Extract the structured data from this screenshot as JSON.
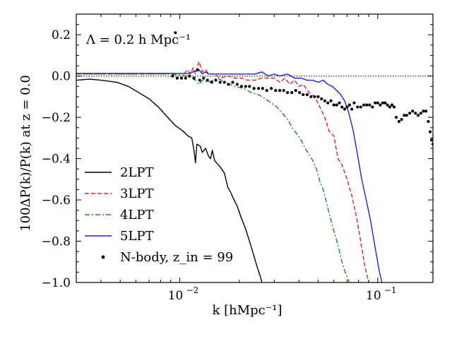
{
  "chart_data": {
    "type": "line",
    "annotation": "Λ = 0.2 h Mpc⁻¹",
    "xlabel": "k [hMpc⁻¹]",
    "ylabel": "100ΔP(k)/P(k) at z = 0.0",
    "xscale": "log",
    "xlim": [
      0.003,
      0.19
    ],
    "ylim": [
      -1.0,
      0.3
    ],
    "x_major_ticks": [
      {
        "value": 0.01,
        "base": "10",
        "exp": "−2"
      },
      {
        "value": 0.1,
        "base": "10",
        "exp": "−1"
      }
    ],
    "y_ticks": [
      {
        "value": 0.2,
        "label": "0.2"
      },
      {
        "value": 0.0,
        "label": "0.0"
      },
      {
        "value": -0.2,
        "label": "−0.2"
      },
      {
        "value": -0.4,
        "label": "−0.4"
      },
      {
        "value": -0.6,
        "label": "−0.6"
      },
      {
        "value": -0.8,
        "label": "−0.8"
      },
      {
        "value": -1.0,
        "label": "−1.0"
      }
    ],
    "reference_line": {
      "y": 0.0,
      "style": "dotted"
    },
    "legend_position": "lower-left",
    "series": [
      {
        "name": "2LPT",
        "color": "#000000",
        "dash": "solid",
        "points": [
          [
            0.003,
            -0.02
          ],
          [
            0.0035,
            -0.015
          ],
          [
            0.004,
            -0.02
          ],
          [
            0.0048,
            -0.03
          ],
          [
            0.0055,
            -0.05
          ],
          [
            0.0062,
            -0.08
          ],
          [
            0.007,
            -0.11
          ],
          [
            0.0078,
            -0.15
          ],
          [
            0.0085,
            -0.19
          ],
          [
            0.0095,
            -0.24
          ],
          [
            0.0105,
            -0.27
          ],
          [
            0.011,
            -0.29
          ],
          [
            0.0115,
            -0.3
          ],
          [
            0.0118,
            -0.36
          ],
          [
            0.012,
            -0.42
          ],
          [
            0.0122,
            -0.33
          ],
          [
            0.0127,
            -0.34
          ],
          [
            0.013,
            -0.37
          ],
          [
            0.0135,
            -0.35
          ],
          [
            0.014,
            -0.39
          ],
          [
            0.0143,
            -0.4
          ],
          [
            0.0146,
            -0.36
          ],
          [
            0.015,
            -0.41
          ],
          [
            0.016,
            -0.44
          ],
          [
            0.0168,
            -0.47
          ],
          [
            0.0175,
            -0.54
          ],
          [
            0.018,
            -0.56
          ],
          [
            0.0188,
            -0.6
          ],
          [
            0.0195,
            -0.63
          ],
          [
            0.0205,
            -0.69
          ],
          [
            0.0215,
            -0.74
          ],
          [
            0.0225,
            -0.8
          ],
          [
            0.0235,
            -0.86
          ],
          [
            0.0245,
            -0.92
          ],
          [
            0.0255,
            -0.97
          ],
          [
            0.026,
            -1.0
          ]
        ]
      },
      {
        "name": "3LPT",
        "color": "#e02020",
        "dash": "dashed",
        "points": [
          [
            0.003,
            0.01
          ],
          [
            0.005,
            0.01
          ],
          [
            0.007,
            0.01
          ],
          [
            0.009,
            0.012
          ],
          [
            0.0105,
            0.012
          ],
          [
            0.011,
            0.03
          ],
          [
            0.0113,
            0.01
          ],
          [
            0.0117,
            0.04
          ],
          [
            0.012,
            0.01
          ],
          [
            0.0125,
            0.07
          ],
          [
            0.013,
            0.02
          ],
          [
            0.0135,
            0.03
          ],
          [
            0.014,
            0.01
          ],
          [
            0.015,
            0.01
          ],
          [
            0.016,
            -0.01
          ],
          [
            0.0175,
            0.0
          ],
          [
            0.019,
            -0.01
          ],
          [
            0.0205,
            -0.01
          ],
          [
            0.022,
            -0.02
          ],
          [
            0.024,
            -0.02
          ],
          [
            0.026,
            -0.01
          ],
          [
            0.028,
            -0.01
          ],
          [
            0.03,
            -0.01
          ],
          [
            0.032,
            -0.03
          ],
          [
            0.034,
            -0.01
          ],
          [
            0.036,
            -0.04
          ],
          [
            0.038,
            -0.02
          ],
          [
            0.04,
            -0.05
          ],
          [
            0.042,
            -0.04
          ],
          [
            0.045,
            -0.08
          ],
          [
            0.048,
            -0.1
          ],
          [
            0.051,
            -0.15
          ],
          [
            0.054,
            -0.2
          ],
          [
            0.057,
            -0.27
          ],
          [
            0.06,
            -0.29
          ],
          [
            0.063,
            -0.4
          ],
          [
            0.066,
            -0.43
          ],
          [
            0.07,
            -0.5
          ],
          [
            0.074,
            -0.58
          ],
          [
            0.078,
            -0.68
          ],
          [
            0.082,
            -0.8
          ],
          [
            0.086,
            -0.92
          ],
          [
            0.09,
            -1.0
          ]
        ]
      },
      {
        "name": "4LPT",
        "color": "#1a8a1a",
        "dash": "dashdot",
        "points": [
          [
            0.003,
            0.01
          ],
          [
            0.006,
            0.01
          ],
          [
            0.009,
            0.01
          ],
          [
            0.011,
            0.0
          ],
          [
            0.012,
            -0.02
          ],
          [
            0.0125,
            -0.04
          ],
          [
            0.013,
            -0.02
          ],
          [
            0.014,
            -0.03
          ],
          [
            0.0155,
            -0.01
          ],
          [
            0.017,
            -0.03
          ],
          [
            0.019,
            -0.05
          ],
          [
            0.021,
            -0.06
          ],
          [
            0.023,
            -0.08
          ],
          [
            0.025,
            -0.09
          ],
          [
            0.027,
            -0.11
          ],
          [
            0.029,
            -0.13
          ],
          [
            0.031,
            -0.15
          ],
          [
            0.033,
            -0.18
          ],
          [
            0.035,
            -0.21
          ],
          [
            0.037,
            -0.25
          ],
          [
            0.039,
            -0.28
          ],
          [
            0.041,
            -0.31
          ],
          [
            0.043,
            -0.35
          ],
          [
            0.045,
            -0.38
          ],
          [
            0.047,
            -0.41
          ],
          [
            0.049,
            -0.45
          ],
          [
            0.051,
            -0.51
          ],
          [
            0.053,
            -0.55
          ],
          [
            0.055,
            -0.61
          ],
          [
            0.057,
            -0.67
          ],
          [
            0.06,
            -0.75
          ],
          [
            0.063,
            -0.82
          ],
          [
            0.066,
            -0.9
          ],
          [
            0.069,
            -0.96
          ],
          [
            0.072,
            -1.0
          ]
        ]
      },
      {
        "name": "5LPT",
        "color": "#1f1fd6",
        "dash": "solid",
        "points": [
          [
            0.003,
            0.013
          ],
          [
            0.005,
            0.013
          ],
          [
            0.007,
            0.013
          ],
          [
            0.009,
            0.013
          ],
          [
            0.011,
            0.012
          ],
          [
            0.0125,
            0.03
          ],
          [
            0.013,
            0.01
          ],
          [
            0.0135,
            0.02
          ],
          [
            0.014,
            0.01
          ],
          [
            0.016,
            0.01
          ],
          [
            0.018,
            0.01
          ],
          [
            0.02,
            0.01
          ],
          [
            0.022,
            0.01
          ],
          [
            0.024,
            0.01
          ],
          [
            0.026,
            0.02
          ],
          [
            0.028,
            0.0
          ],
          [
            0.03,
            0.01
          ],
          [
            0.032,
            0.0
          ],
          [
            0.035,
            0.01
          ],
          [
            0.038,
            -0.01
          ],
          [
            0.041,
            -0.01
          ],
          [
            0.044,
            -0.02
          ],
          [
            0.047,
            -0.02
          ],
          [
            0.05,
            -0.03
          ],
          [
            0.053,
            -0.02
          ],
          [
            0.056,
            -0.04
          ],
          [
            0.059,
            -0.05
          ],
          [
            0.062,
            -0.07
          ],
          [
            0.065,
            -0.09
          ],
          [
            0.068,
            -0.12
          ],
          [
            0.071,
            -0.17
          ],
          [
            0.075,
            -0.26
          ],
          [
            0.079,
            -0.38
          ],
          [
            0.083,
            -0.5
          ],
          [
            0.087,
            -0.59
          ],
          [
            0.092,
            -0.7
          ],
          [
            0.097,
            -0.83
          ],
          [
            0.102,
            -0.95
          ],
          [
            0.105,
            -1.0
          ]
        ]
      },
      {
        "name": "N-body, z_in = 99",
        "color": "#000000",
        "dash": "points",
        "points": [
          [
            0.0095,
            0.21
          ],
          [
            0.0123,
            0.03
          ],
          [
            0.0092,
            0.0
          ],
          [
            0.0097,
            -0.01
          ],
          [
            0.0102,
            -0.01
          ],
          [
            0.0107,
            -0.01
          ],
          [
            0.0112,
            -0.0
          ],
          [
            0.0118,
            -0.01
          ],
          [
            0.0126,
            -0.02
          ],
          [
            0.0132,
            -0.01
          ],
          [
            0.0138,
            -0.02
          ],
          [
            0.0145,
            -0.03
          ],
          [
            0.0152,
            -0.02
          ],
          [
            0.016,
            -0.03
          ],
          [
            0.0168,
            -0.03
          ],
          [
            0.0176,
            -0.04
          ],
          [
            0.0185,
            -0.03
          ],
          [
            0.0195,
            -0.04
          ],
          [
            0.0205,
            -0.05
          ],
          [
            0.0215,
            -0.05
          ],
          [
            0.0225,
            -0.05
          ],
          [
            0.0237,
            -0.06
          ],
          [
            0.025,
            -0.06
          ],
          [
            0.0262,
            -0.06
          ],
          [
            0.0275,
            -0.07
          ],
          [
            0.029,
            -0.06
          ],
          [
            0.0305,
            -0.07
          ],
          [
            0.032,
            -0.07
          ],
          [
            0.0335,
            -0.07
          ],
          [
            0.035,
            -0.08
          ],
          [
            0.0368,
            -0.08
          ],
          [
            0.0385,
            -0.07
          ],
          [
            0.0403,
            -0.08
          ],
          [
            0.042,
            -0.09
          ],
          [
            0.044,
            -0.09
          ],
          [
            0.046,
            -0.1
          ],
          [
            0.048,
            -0.1
          ],
          [
            0.05,
            -0.1
          ],
          [
            0.052,
            -0.11
          ],
          [
            0.054,
            -0.12
          ],
          [
            0.056,
            -0.13
          ],
          [
            0.058,
            -0.12
          ],
          [
            0.06,
            -0.14
          ],
          [
            0.062,
            -0.14
          ],
          [
            0.064,
            -0.13
          ],
          [
            0.066,
            -0.15
          ],
          [
            0.068,
            -0.16
          ],
          [
            0.07,
            -0.15
          ],
          [
            0.072,
            -0.14
          ],
          [
            0.074,
            -0.16
          ],
          [
            0.076,
            -0.13
          ],
          [
            0.079,
            -0.15
          ],
          [
            0.082,
            -0.15
          ],
          [
            0.085,
            -0.14
          ],
          [
            0.088,
            -0.14
          ],
          [
            0.091,
            -0.14
          ],
          [
            0.094,
            -0.15
          ],
          [
            0.097,
            -0.13
          ],
          [
            0.1,
            -0.13
          ],
          [
            0.103,
            -0.14
          ],
          [
            0.106,
            -0.13
          ],
          [
            0.109,
            -0.13
          ],
          [
            0.112,
            -0.14
          ],
          [
            0.115,
            -0.15
          ],
          [
            0.118,
            -0.14
          ],
          [
            0.121,
            -0.15
          ],
          [
            0.124,
            -0.2
          ],
          [
            0.128,
            -0.22
          ],
          [
            0.132,
            -0.21
          ],
          [
            0.136,
            -0.19
          ],
          [
            0.14,
            -0.19
          ],
          [
            0.145,
            -0.18
          ],
          [
            0.15,
            -0.17
          ],
          [
            0.155,
            -0.18
          ],
          [
            0.16,
            -0.19
          ],
          [
            0.165,
            -0.18
          ],
          [
            0.17,
            -0.17
          ],
          [
            0.175,
            -0.17
          ],
          [
            0.18,
            -0.22
          ],
          [
            0.184,
            -0.27
          ],
          [
            0.187,
            -0.31
          ],
          [
            0.19,
            -0.33
          ]
        ]
      }
    ]
  }
}
